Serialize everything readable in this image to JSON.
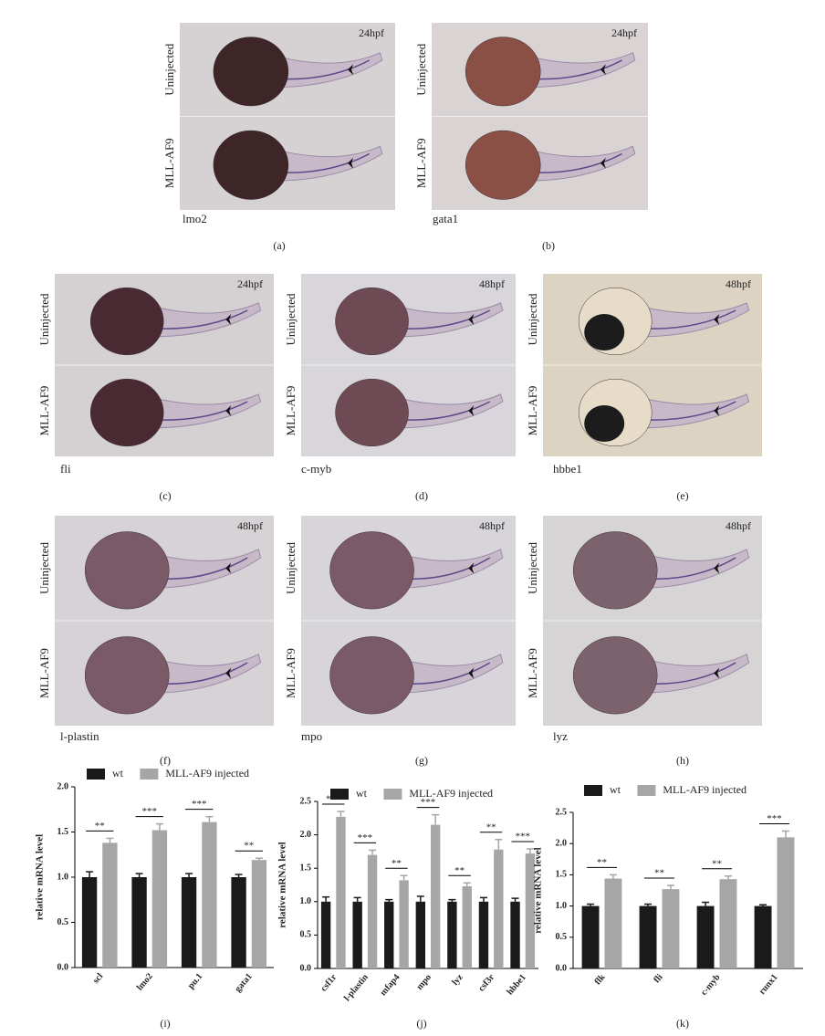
{
  "panels": [
    {
      "letter": "(a)",
      "gene": "lmo2",
      "stage": "24hpf",
      "top_label": "Uninjected",
      "bottom_label": "MLL-AF9"
    },
    {
      "letter": "(b)",
      "gene": "gata1",
      "stage": "24hpf",
      "top_label": "Uninjected",
      "bottom_label": "MLL-AF9"
    },
    {
      "letter": "(c)",
      "gene": "fli",
      "stage": "24hpf",
      "top_label": "Uninjected",
      "bottom_label": "MLL-AF9"
    },
    {
      "letter": "(d)",
      "gene": "c-myb",
      "stage": "48hpf",
      "top_label": "Uninjected",
      "bottom_label": "MLL-AF9"
    },
    {
      "letter": "(e)",
      "gene": "hbbe1",
      "stage": "48hpf",
      "top_label": "Uninjected",
      "bottom_label": "MLL-AF9"
    },
    {
      "letter": "(f)",
      "gene": "l-plastin",
      "stage": "48hpf",
      "top_label": "Uninjected",
      "bottom_label": "MLL-AF9"
    },
    {
      "letter": "(g)",
      "gene": "mpo",
      "stage": "48hpf",
      "top_label": "Uninjected",
      "bottom_label": "MLL-AF9"
    },
    {
      "letter": "(h)",
      "gene": "lyz",
      "stage": "48hpf",
      "top_label": "Uninjected",
      "bottom_label": "MLL-AF9"
    }
  ],
  "chart_data": [
    {
      "type": "bar",
      "letter": "(i)",
      "ylabel": "relative mRNA level",
      "categories": [
        "scl",
        "lmo2",
        "pu.1",
        "gata1"
      ],
      "series": [
        {
          "name": "wt",
          "color": "#1a1a1a",
          "values": [
            1.0,
            1.0,
            1.0,
            1.0
          ],
          "errors": [
            0.06,
            0.04,
            0.04,
            0.03
          ]
        },
        {
          "name": "MLL-AF9 injected",
          "color": "#a6a6a6",
          "values": [
            1.38,
            1.52,
            1.61,
            1.19
          ],
          "errors": [
            0.05,
            0.07,
            0.06,
            0.02
          ]
        }
      ],
      "significance": [
        "**",
        "***",
        "***",
        "**"
      ],
      "ylim": [
        0,
        2.0
      ],
      "yticks": [
        {
          "value": 0,
          "label": "0.0"
        },
        {
          "value": 0.5,
          "label": "0.5"
        },
        {
          "value": 1.0,
          "label": "1.0"
        },
        {
          "value": 1.5,
          "label": "1.5"
        },
        {
          "value": 2.0,
          "label": "2.0"
        }
      ]
    },
    {
      "type": "bar",
      "letter": "(j)",
      "ylabel": "relative mRNA level",
      "categories": [
        "csf1r",
        "l-plastin",
        "mfap4",
        "mpo",
        "lyz",
        "csf3r",
        "hbbe1"
      ],
      "series": [
        {
          "name": "wt",
          "color": "#1a1a1a",
          "values": [
            1.0,
            1.0,
            1.0,
            1.0,
            1.0,
            1.0,
            1.0
          ],
          "errors": [
            0.07,
            0.06,
            0.03,
            0.08,
            0.03,
            0.06,
            0.05
          ]
        },
        {
          "name": "MLL-AF9 injected",
          "color": "#a6a6a6",
          "values": [
            2.27,
            1.7,
            1.32,
            2.15,
            1.23,
            1.78,
            1.72
          ],
          "errors": [
            0.08,
            0.07,
            0.07,
            0.15,
            0.05,
            0.15,
            0.07
          ]
        }
      ],
      "significance": [
        "***",
        "***",
        "**",
        "***",
        "**",
        "**",
        "***"
      ],
      "ylim": [
        0,
        2.5
      ],
      "yticks": [
        {
          "value": 0,
          "label": "0.0"
        },
        {
          "value": 0.5,
          "label": "0.5"
        },
        {
          "value": 1.0,
          "label": "1.0"
        },
        {
          "value": 1.5,
          "label": "1.5"
        },
        {
          "value": 2.0,
          "label": "2.0"
        },
        {
          "value": 2.5,
          "label": "2.5"
        }
      ]
    },
    {
      "type": "bar",
      "letter": "(k)",
      "ylabel": "relative mRNA level",
      "categories": [
        "flk",
        "fli",
        "c-myb",
        "runx1"
      ],
      "series": [
        {
          "name": "wt",
          "color": "#1a1a1a",
          "values": [
            1.0,
            1.0,
            1.0,
            1.0
          ],
          "errors": [
            0.03,
            0.03,
            0.06,
            0.02
          ]
        },
        {
          "name": "MLL-AF9 injected",
          "color": "#a6a6a6",
          "values": [
            1.44,
            1.27,
            1.43,
            2.1
          ],
          "errors": [
            0.06,
            0.06,
            0.05,
            0.1
          ]
        }
      ],
      "significance": [
        "**",
        "**",
        "**",
        "***"
      ],
      "ylim": [
        0,
        2.5
      ],
      "yticks": [
        {
          "value": 0,
          "label": "0.0"
        },
        {
          "value": 0.5,
          "label": "0.5"
        },
        {
          "value": 1.0,
          "label": "1.0"
        },
        {
          "value": 1.5,
          "label": "1.5"
        },
        {
          "value": 2.0,
          "label": "2.0"
        },
        {
          "value": 2.5,
          "label": "2.5"
        }
      ]
    }
  ]
}
